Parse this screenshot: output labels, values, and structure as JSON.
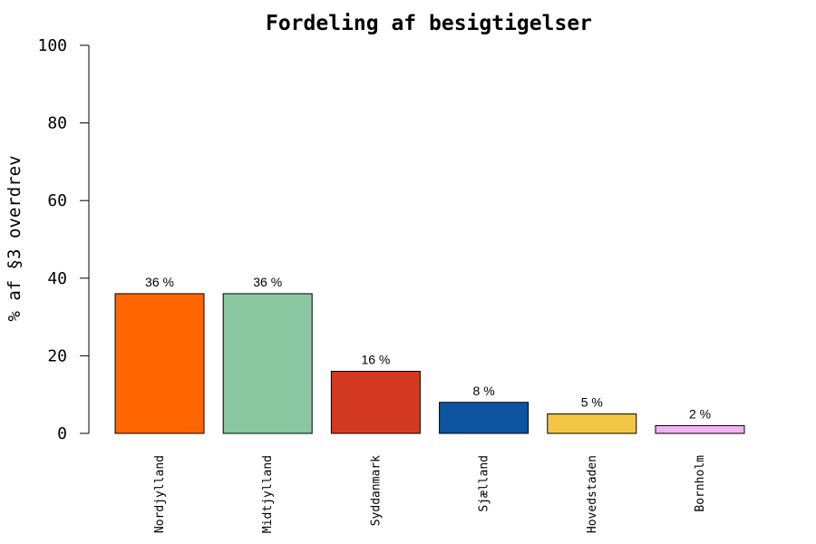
{
  "chart_data": {
    "type": "bar",
    "title": "Fordeling af besigtigelser",
    "xlabel": "",
    "ylabel": "% af §3 overdrev",
    "ylim": [
      0,
      100
    ],
    "yticks": [
      0,
      20,
      40,
      60,
      80,
      100
    ],
    "categories": [
      "Nordjylland",
      "Midtjylland",
      "Syddanmark",
      "Sjælland",
      "Hovedstaden",
      "Bornholm"
    ],
    "values": [
      36,
      36,
      16,
      8,
      5,
      2
    ],
    "data_labels": [
      "36 %",
      "36 %",
      "16 %",
      "8 %",
      "5 %",
      "2 %"
    ],
    "colors": [
      "#FF6600",
      "#88C79F",
      "#D33920",
      "#0D55A0",
      "#F3C645",
      "#EFB4F0"
    ],
    "grid": false,
    "legend": "none"
  }
}
